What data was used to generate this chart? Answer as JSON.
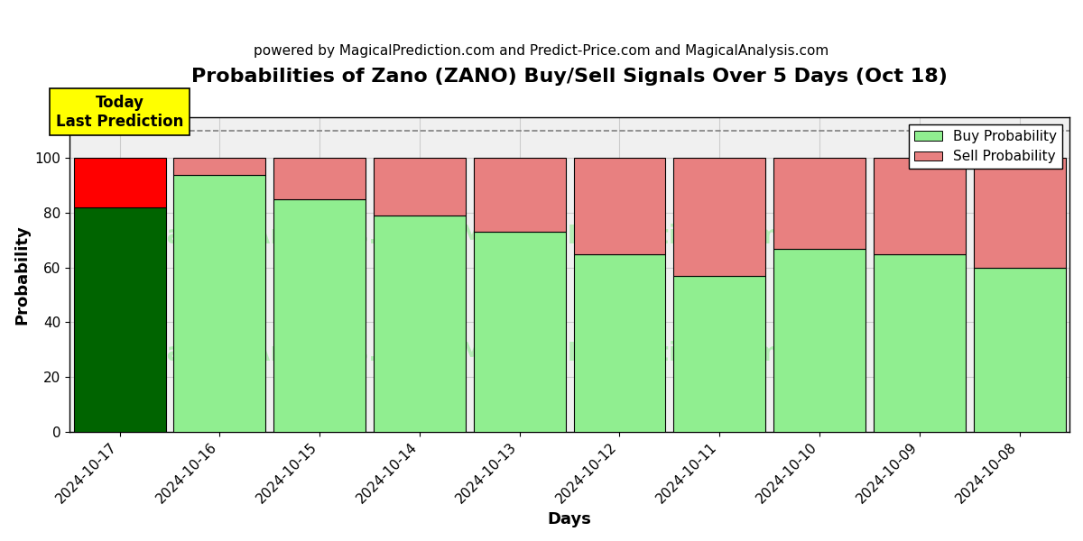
{
  "title": "Probabilities of Zano (ZANO) Buy/Sell Signals Over 5 Days (Oct 18)",
  "subtitle": "powered by MagicalPrediction.com and Predict-Price.com and MagicalAnalysis.com",
  "xlabel": "Days",
  "ylabel": "Probability",
  "categories": [
    "2024-10-17",
    "2024-10-16",
    "2024-10-15",
    "2024-10-14",
    "2024-10-13",
    "2024-10-12",
    "2024-10-11",
    "2024-10-10",
    "2024-10-09",
    "2024-10-08"
  ],
  "buy_values": [
    82,
    94,
    85,
    79,
    73,
    65,
    57,
    67,
    65,
    60
  ],
  "sell_values": [
    18,
    6,
    15,
    21,
    27,
    35,
    43,
    33,
    35,
    40
  ],
  "today_buy_color": "#006400",
  "today_sell_color": "#FF0000",
  "buy_color": "#90EE90",
  "sell_color": "#E88080",
  "today_bar_index": 0,
  "ylim": [
    0,
    115
  ],
  "yticks": [
    0,
    20,
    40,
    60,
    80,
    100
  ],
  "dashed_line_y": 110,
  "annotation_text": "Today\nLast Prediction",
  "annotation_bg_color": "#FFFF00",
  "annotation_fontsize": 12,
  "watermark_color": "#90EE90",
  "watermark_alpha": 0.6,
  "plot_bg_color": "#f0f0f0",
  "grid_color": "#cccccc",
  "legend_buy_color": "#90EE90",
  "legend_sell_color": "#E88080",
  "bar_edge_color": "#000000",
  "bar_edge_width": 0.8,
  "bar_width": 0.92,
  "title_fontsize": 16,
  "subtitle_fontsize": 11,
  "label_fontsize": 13,
  "tick_fontsize": 11
}
